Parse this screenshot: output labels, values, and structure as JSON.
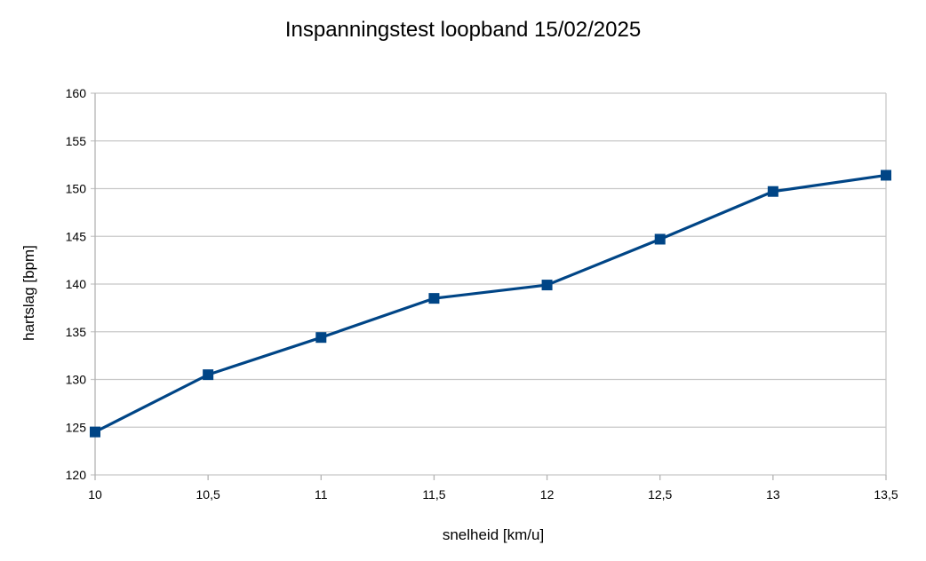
{
  "chart_data": {
    "type": "line",
    "title": "Inspanningstest loopband 15/02/2025",
    "xlabel": "snelheid [km/u]",
    "ylabel": "hartslag [bpm]",
    "x": [
      10,
      10.5,
      11,
      11.5,
      12,
      12.5,
      13,
      13.5
    ],
    "x_tick_labels": [
      "10",
      "10,5",
      "11",
      "11,5",
      "12",
      "12,5",
      "13",
      "13,5"
    ],
    "series": [
      {
        "name": "hartslag",
        "values": [
          124.5,
          130.5,
          134.4,
          138.5,
          139.9,
          144.7,
          149.7,
          151.4
        ],
        "color": "#004586",
        "marker": "square"
      }
    ],
    "xlim": [
      10,
      13.5
    ],
    "ylim": [
      120,
      160
    ],
    "y_ticks": [
      120,
      125,
      130,
      135,
      140,
      145,
      150,
      155,
      160
    ],
    "grid": "horizontal",
    "legend": "none"
  }
}
